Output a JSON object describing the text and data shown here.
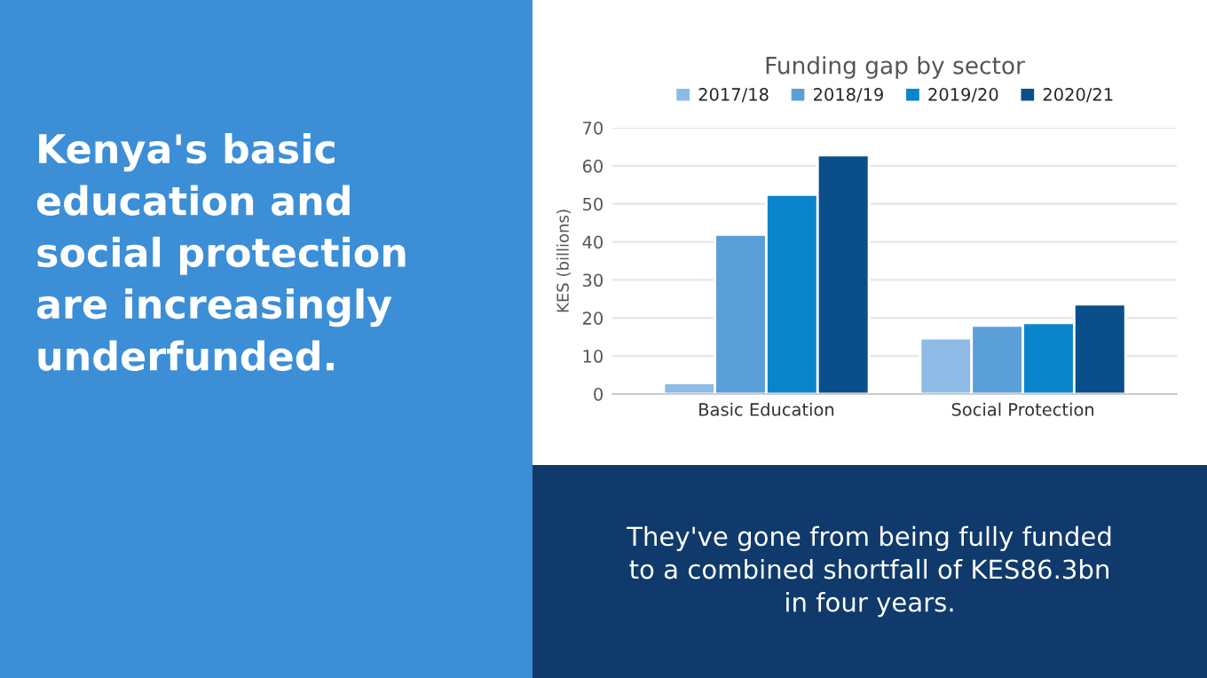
{
  "chart_data": {
    "type": "bar",
    "title": "Funding gap by sector",
    "ylabel": "KES (billions)",
    "categories": [
      "Basic Education",
      "Social Protection"
    ],
    "series": [
      {
        "name": "2017/18",
        "color": "#8dbbe6",
        "values": [
          2.9,
          14.7
        ]
      },
      {
        "name": "2018/19",
        "color": "#5b9fd9",
        "values": [
          41.9,
          18.0
        ]
      },
      {
        "name": "2019/20",
        "color": "#0a85cc",
        "values": [
          52.4,
          18.7
        ]
      },
      {
        "name": "2020/21",
        "color": "#0a4f8c",
        "values": [
          62.8,
          23.6
        ]
      }
    ],
    "ylim": [
      0,
      70
    ],
    "yticks": [
      0,
      10,
      20,
      30,
      40,
      50,
      60,
      70
    ],
    "grid": "y",
    "legend": "top",
    "annotations": [
      "Kenya's basic\neducation and\nsocial protection\nare increasingly\nunderfunded.",
      "They've gone from being fully funded\nto a combined shortfall of KES86.3bn\nin four years."
    ]
  }
}
